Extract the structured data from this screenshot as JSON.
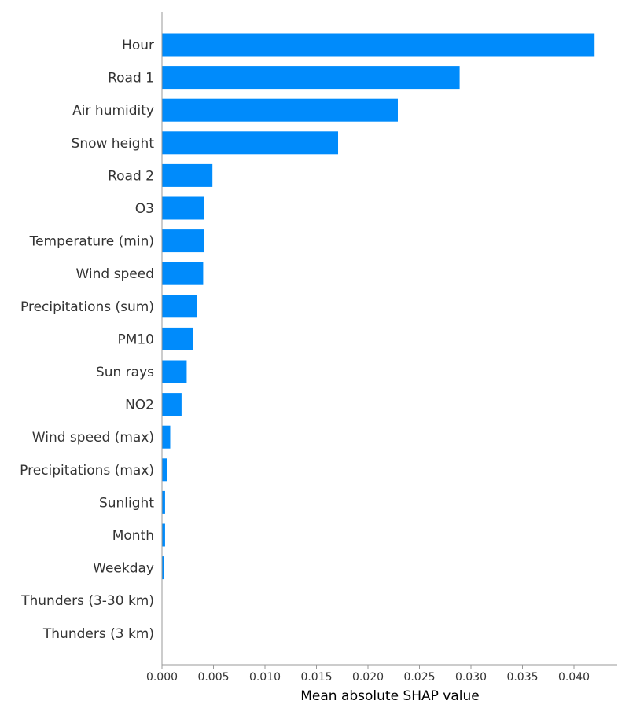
{
  "chart_data": {
    "type": "bar",
    "orientation": "horizontal",
    "xlabel": "Mean absolute SHAP value",
    "xlim": [
      0,
      0.044
    ],
    "x_ticks": [
      "0.000",
      "0.005",
      "0.010",
      "0.015",
      "0.020",
      "0.025",
      "0.030",
      "0.035",
      "0.040"
    ],
    "bar_color": "#008bfb",
    "categories": [
      "Hour",
      "Road 1",
      "Air humidity",
      "Snow height",
      "Road 2",
      "O3",
      "Temperature (min)",
      "Wind speed",
      "Precipitations (sum)",
      "PM10",
      "Sun rays",
      "NO2",
      "Wind speed (max)",
      "Precipitations (max)",
      "Sunlight",
      "Month",
      "Weekday",
      "Thunders (3-30 km)",
      "Thunders (3 km)"
    ],
    "values": [
      0.042,
      0.0289,
      0.0229,
      0.0171,
      0.0049,
      0.0041,
      0.0041,
      0.004,
      0.0034,
      0.003,
      0.0024,
      0.0019,
      0.0008,
      0.0005,
      0.0003,
      0.0003,
      0.0002,
      0.0,
      0.0
    ],
    "grid": false
  }
}
